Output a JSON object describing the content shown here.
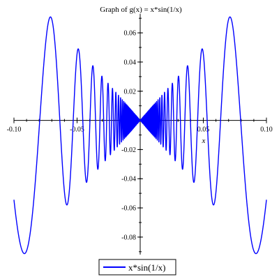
{
  "chart_data": {
    "type": "line",
    "title": "Graph of g(x) = x*sin(1/x)",
    "xlabel": "x",
    "ylabel": "",
    "xlim": [
      -0.1,
      0.1
    ],
    "ylim": [
      -0.092,
      0.072
    ],
    "grid": false,
    "legend": "bottom-center",
    "function": "x*sin(1/x)",
    "series": [
      {
        "name": "x*sin(1/x)",
        "color": "#0000ff"
      }
    ],
    "x_ticks": [
      {
        "value": -0.1,
        "label": "-0.10"
      },
      {
        "value": -0.05,
        "label": "-0.05"
      },
      {
        "value": 0.05,
        "label": "0.05"
      },
      {
        "value": 0.1,
        "label": "0.10"
      }
    ],
    "y_ticks": [
      {
        "value": 0.06,
        "label": "0.06"
      },
      {
        "value": 0.04,
        "label": "0.04"
      },
      {
        "value": 0.02,
        "label": "0.02"
      },
      {
        "value": -0.02,
        "label": "-0.02"
      },
      {
        "value": -0.04,
        "label": "-0.04"
      },
      {
        "value": -0.06,
        "label": "-0.06"
      },
      {
        "value": -0.08,
        "label": "-0.08"
      }
    ]
  }
}
